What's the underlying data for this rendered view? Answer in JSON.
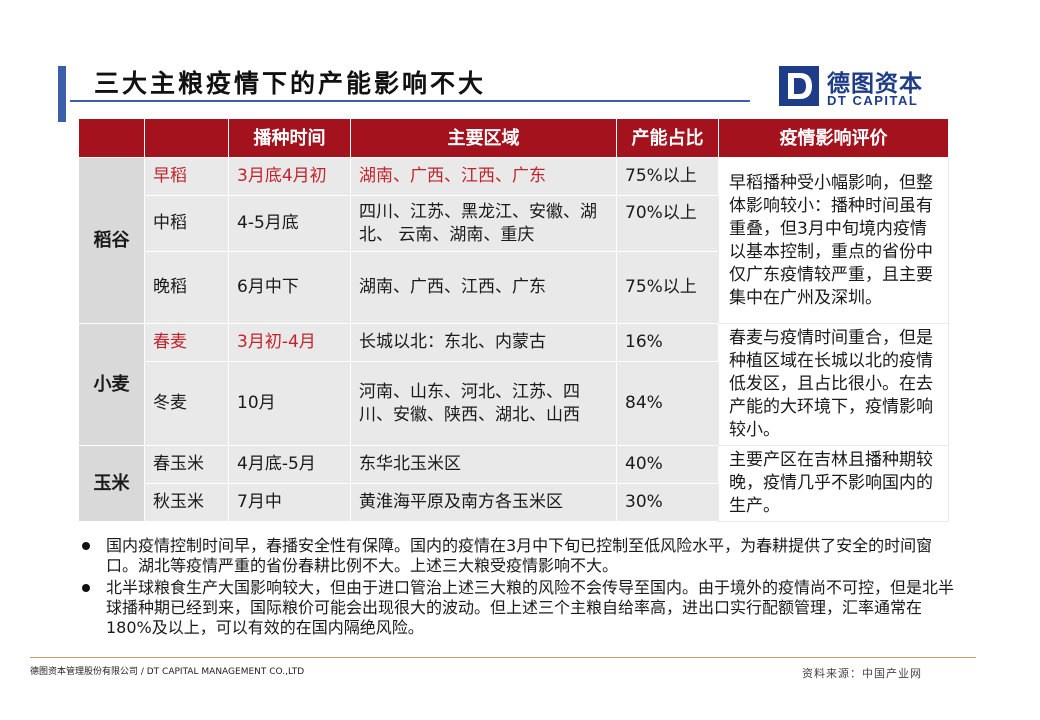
{
  "header": {
    "title": "三大主粮疫情下的产能影响不大",
    "logo_cn": "德图资本",
    "logo_en": "DT CAPITAL"
  },
  "table": {
    "columns": [
      "",
      "",
      "播种时间",
      "主要区域",
      "产能占比",
      "疫情影响评价"
    ],
    "groups": [
      {
        "category": "稻谷",
        "evaluation": "早稻播种受小幅影响，但整体影响较小：播种时间虽有重叠，但3月中旬境内疫情以基本控制，重点的省份中仅广东疫情较严重，且主要集中在广州及深圳。",
        "rows": [
          {
            "crop": "早稻",
            "time": "3月底4月初",
            "region": "湖南、广西、江西、广东",
            "share": "75%以上",
            "highlight": true
          },
          {
            "crop": "中稻",
            "time": "4-5月底",
            "region": "四川、江苏、黑龙江、安徽、湖北、 云南、湖南、重庆",
            "share": "70%以上",
            "highlight": false
          },
          {
            "crop": "晚稻",
            "time": "6月中下",
            "region": "湖南、广西、江西、广东",
            "share": "75%以上",
            "highlight": false
          }
        ]
      },
      {
        "category": "小麦",
        "evaluation": "春麦与疫情时间重合，但是种植区域在长城以北的疫情低发区，且占比很小。在去产能的大环境下，疫情影响较小。",
        "rows": [
          {
            "crop": "春麦",
            "time": "3月初-4月",
            "region": "长城以北：东北、内蒙古",
            "share": "16%",
            "highlight": true
          },
          {
            "crop": "冬麦",
            "time": "10月",
            "region": "河南、山东、河北、江苏、四川、安徽、陕西、湖北、山西",
            "share": "84%",
            "highlight": false
          }
        ]
      },
      {
        "category": "玉米",
        "evaluation": "主要产区在吉林且播种期较晚，疫情几乎不影响国内的生产。",
        "rows": [
          {
            "crop": "春玉米",
            "time": "4月底-5月",
            "region": "东华北玉米区",
            "share": "40%",
            "highlight": false
          },
          {
            "crop": "秋玉米",
            "time": "7月中",
            "region": "黄淮海平原及南方各玉米区",
            "share": "30%",
            "highlight": false
          }
        ]
      }
    ]
  },
  "bullets": [
    "国内疫情控制时间早，春播安全性有保障。国内的疫情在3月中下旬已控制至低风险水平，为春耕提供了安全的时间窗口。湖北等疫情严重的省份春耕比例不大。上述三大粮受疫情影响不大。",
    "北半球粮食生产大国影响较大，但由于进口管治上述三大粮的风险不会传导至国内。由于境外的疫情尚不可控，但是北半球播种期已经到来，国际粮价可能会出现很大的波动。但上述三个主粮自给率高，进出口实行配额管理，汇率通常在180%及以上，可以有效的在国内隔绝风险。"
  ],
  "footer": {
    "company": "德图资本管理股份有限公司 / DT CAPITAL MANAGEMENT CO.,LTD",
    "source": "资料来源：中国产业网"
  }
}
